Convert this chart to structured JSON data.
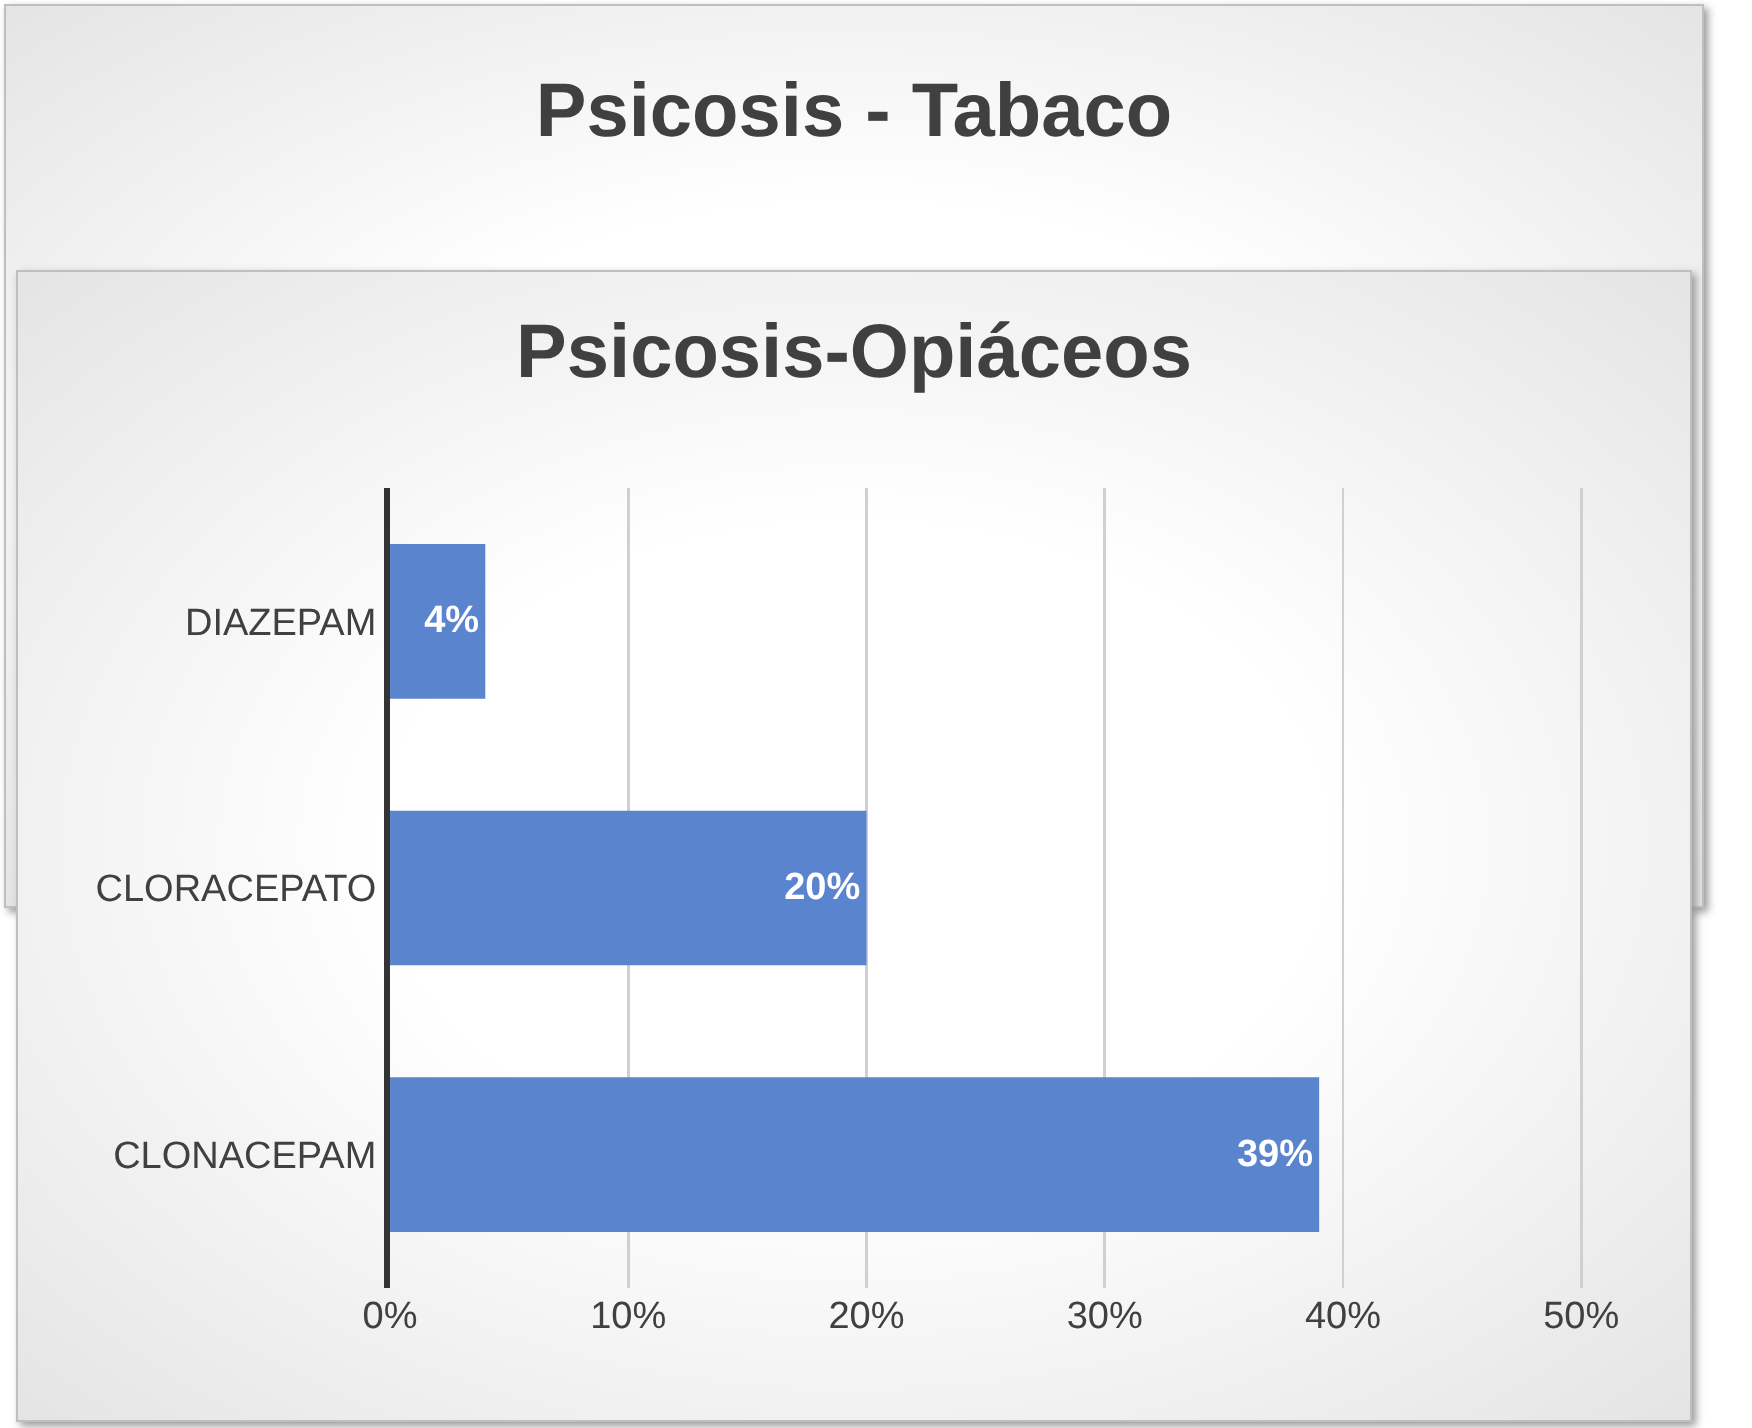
{
  "chart_data": [
    {
      "type": "other",
      "title": "Psicosis - Tabaco"
    },
    {
      "type": "bar",
      "orientation": "horizontal",
      "title": "Psicosis-Opiáceos",
      "categories": [
        "DIAZEPAM",
        "CLORACEPATO",
        "CLONACEPAM"
      ],
      "values": [
        4,
        20,
        39
      ],
      "color": "#5b84cf",
      "data_labels": true,
      "value_labels": [
        "4%",
        "20%",
        "39%"
      ],
      "xlim": [
        0,
        50
      ],
      "xticks": [
        {
          "value": 0,
          "label": "0%"
        },
        {
          "value": 10,
          "label": "10%"
        },
        {
          "value": 20,
          "label": "20%"
        },
        {
          "value": 30,
          "label": "30%"
        },
        {
          "value": 40,
          "label": "40%"
        },
        {
          "value": 50,
          "label": "50%"
        }
      ],
      "grid": "x"
    }
  ]
}
